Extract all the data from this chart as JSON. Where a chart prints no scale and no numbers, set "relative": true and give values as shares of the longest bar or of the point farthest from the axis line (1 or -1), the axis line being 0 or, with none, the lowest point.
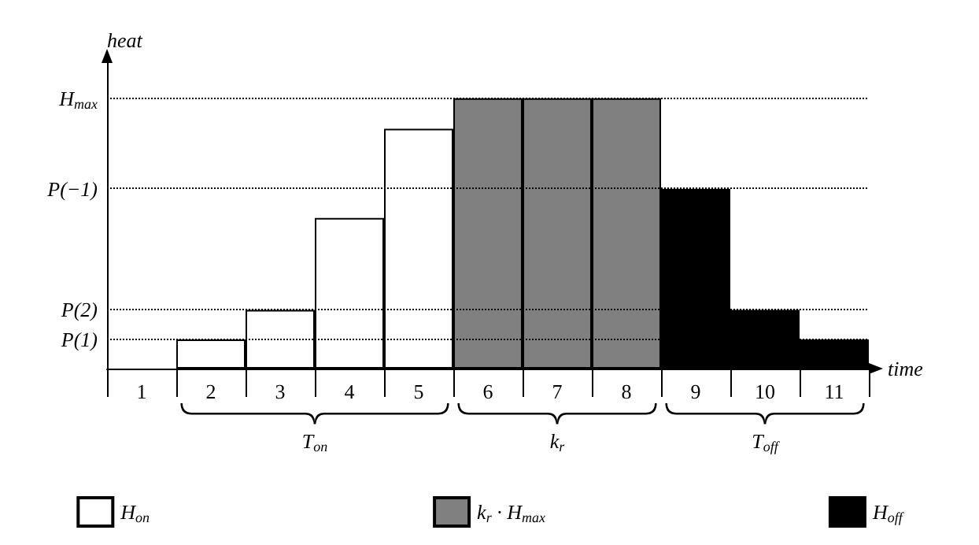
{
  "chart_data": {
    "type": "bar",
    "relative": true,
    "stacked": true,
    "xlabel": "time",
    "ylabel": "heat",
    "categories": [
      "1",
      "2",
      "3",
      "4",
      "5",
      "6",
      "7",
      "8",
      "9",
      "10",
      "11"
    ],
    "series": [
      {
        "name": "H$_{on}$",
        "color": "#ffffff",
        "values": [
          null,
          0.108,
          0.217,
          0.557,
          0.887,
          null,
          null,
          null,
          null,
          null,
          null
        ]
      },
      {
        "name": "k$_{r}$ · H$_{max}$",
        "color": "#808080",
        "values": [
          null,
          null,
          null,
          null,
          null,
          1,
          1,
          1,
          null,
          null,
          null
        ]
      },
      {
        "name": "H$_{off}$",
        "color": "#000000",
        "values": [
          null,
          null,
          null,
          null,
          null,
          null,
          null,
          null,
          0.665,
          0.217,
          0.108
        ]
      }
    ],
    "ref_lines": [
      {
        "axis": "y",
        "value": 1,
        "label": "H$_{max}$"
      },
      {
        "axis": "y",
        "value": 0.665,
        "label": "P(−1)"
      },
      {
        "axis": "y",
        "value": 0.217,
        "label": "P(2)"
      },
      {
        "axis": "y",
        "value": 0.108,
        "label": "P(1)"
      }
    ],
    "annotations": [
      "T$_{on}$",
      "k$_{r}$",
      "T$_{off}$"
    ],
    "legend": "bottom",
    "grid": false
  }
}
